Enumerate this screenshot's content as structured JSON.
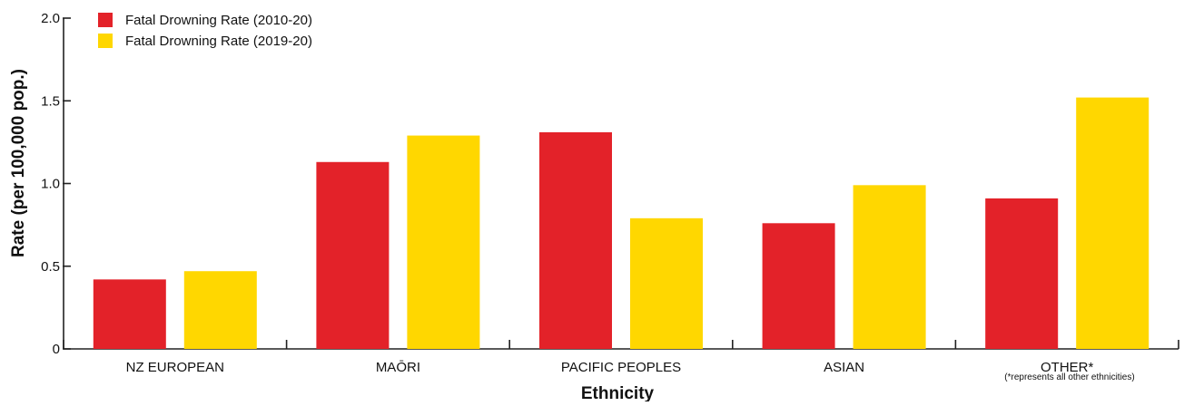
{
  "chart_data": {
    "type": "bar",
    "title": "",
    "xlabel": "Ethnicity",
    "ylabel": "Rate (per 100,000 pop.)",
    "ylim": [
      0,
      2.0
    ],
    "yticks": [
      "0",
      "0.5",
      "1.0",
      "1.5",
      "2.0"
    ],
    "categories": [
      "NZ EUROPEAN",
      "MAŌRI",
      "PACIFIC PEOPLES",
      "ASIAN",
      "OTHER*"
    ],
    "category_note": "(*represents all other ethnicities)",
    "legend_position": "top-left",
    "grid": false,
    "series": [
      {
        "name": "Fatal Drowning Rate (2010-20)",
        "color": "#e32229",
        "values": [
          0.42,
          1.13,
          1.31,
          0.76,
          0.91
        ]
      },
      {
        "name": "Fatal Drowning Rate (2019-20)",
        "color": "#ffd700",
        "values": [
          0.47,
          1.29,
          0.79,
          0.99,
          1.52
        ]
      }
    ]
  }
}
